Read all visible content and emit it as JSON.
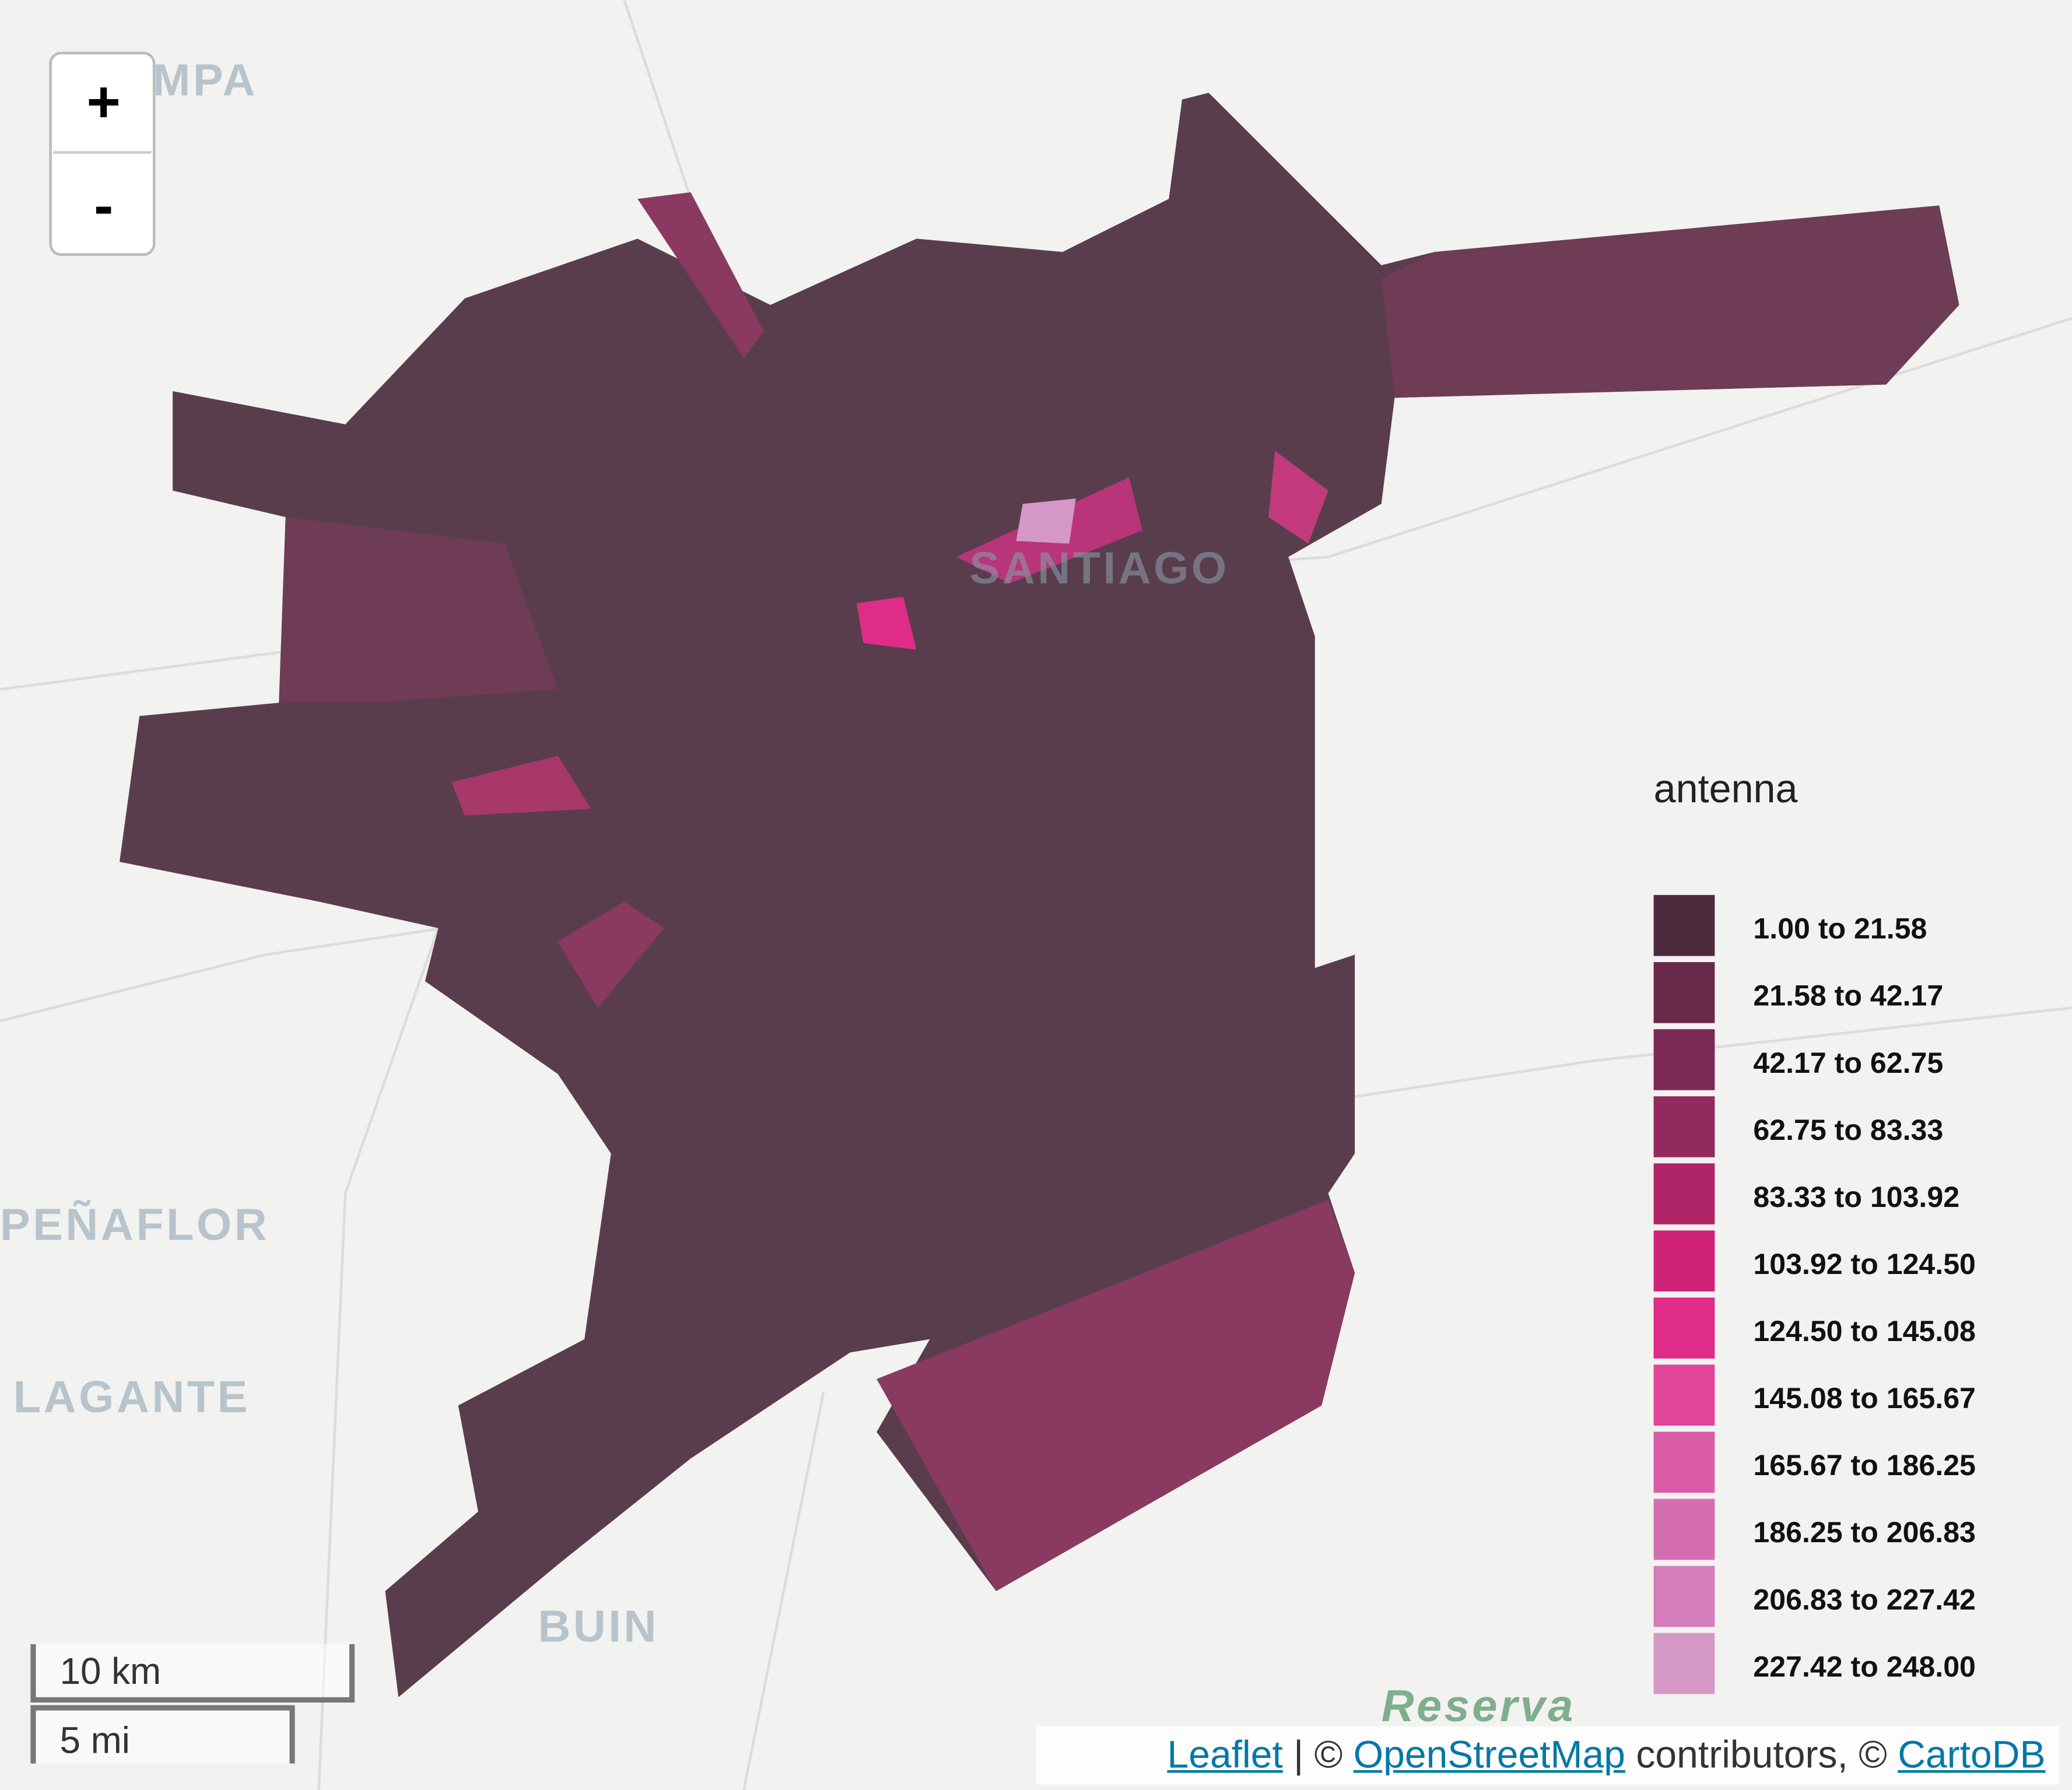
{
  "map": {
    "zoom_in": "+",
    "zoom_out": "-",
    "places": [
      "MPA",
      "SANTIAGO",
      "PEÑAFLOR",
      "LAGANTE",
      "BUIN",
      "Reserva"
    ],
    "legend": {
      "title": "antenna",
      "items": [
        {
          "label": "1.00 to 21.58",
          "color": "#4d2b3d"
        },
        {
          "label": "21.58 to 42.17",
          "color": "#68294a"
        },
        {
          "label": "42.17 to 62.75",
          "color": "#7c2955"
        },
        {
          "label": "62.75 to 83.33",
          "color": "#922a5f"
        },
        {
          "label": "83.33 to 103.92",
          "color": "#b02568"
        },
        {
          "label": "103.92 to 124.50",
          "color": "#cf237a"
        },
        {
          "label": "124.50 to 145.08",
          "color": "#df2c88"
        },
        {
          "label": "145.08 to 165.67",
          "color": "#df4599"
        },
        {
          "label": "165.67 to 186.25",
          "color": "#da5ba6"
        },
        {
          "label": "186.25 to 206.83",
          "color": "#d56eb0"
        },
        {
          "label": "206.83 to 227.42",
          "color": "#d47dba"
        },
        {
          "label": "227.42 to 248.00",
          "color": "#d597c6"
        }
      ]
    },
    "scale": {
      "km": "10 km",
      "mi": "5 mi"
    },
    "attribution": {
      "leaflet": "Leaflet",
      "sep1": "| ©",
      "osm": "OpenStreetMap",
      "sep2": "contributors, ©",
      "carto": "CartoDB"
    }
  }
}
